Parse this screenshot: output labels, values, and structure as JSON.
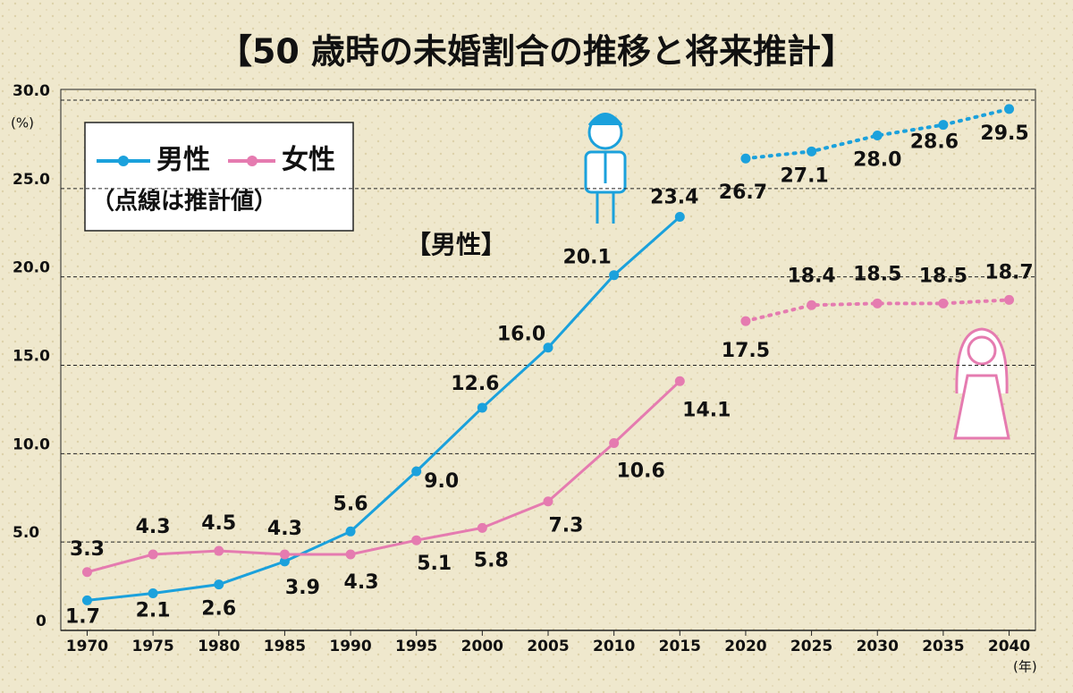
{
  "chart_data": {
    "type": "line",
    "title": "【50 歳時の未婚割合の推移と将来推計】",
    "y_unit": "(%)",
    "x_unit": "(年)",
    "legend_note": "（点線は推計値）",
    "annotation": "【男性】",
    "x": [
      1970,
      1975,
      1980,
      1985,
      1990,
      1995,
      2000,
      2005,
      2010,
      2015,
      2020,
      2025,
      2030,
      2035,
      2040
    ],
    "xlim": [
      1968,
      2042
    ],
    "ylim": [
      0,
      30
    ],
    "yticks": [
      0,
      {
        "value": 5,
        "label": "5.0"
      },
      {
        "value": 10,
        "label": "10.0"
      },
      {
        "value": 15,
        "label": "15.0"
      },
      {
        "value": 20,
        "label": "20.0"
      },
      {
        "value": 25,
        "label": "25.0"
      },
      {
        "value": 30,
        "label": "30.0"
      }
    ],
    "grid": true,
    "series": [
      {
        "name": "男性",
        "color": "#1ba1dc",
        "values": [
          1.7,
          2.1,
          2.6,
          3.9,
          5.6,
          9.0,
          12.6,
          16.0,
          20.1,
          23.4,
          null,
          null,
          null,
          null,
          null
        ],
        "value_labels": [
          "1.7",
          "2.1",
          "2.6",
          "3.9",
          "5.6",
          "9.0",
          "12.6",
          "16.0",
          "20.1",
          "23.4",
          null,
          null,
          null,
          null,
          null
        ],
        "projected_values": [
          null,
          null,
          null,
          null,
          null,
          null,
          null,
          null,
          null,
          null,
          26.7,
          27.1,
          28.0,
          28.6,
          29.5
        ],
        "projected_value_labels": [
          null,
          null,
          null,
          null,
          null,
          null,
          null,
          null,
          null,
          null,
          "26.7",
          "27.1",
          "28.0",
          "28.6",
          "29.5"
        ]
      },
      {
        "name": "女性",
        "color": "#e57bb0",
        "values": [
          3.3,
          4.3,
          4.5,
          4.3,
          4.3,
          5.1,
          5.8,
          7.3,
          10.6,
          14.1,
          null,
          null,
          null,
          null,
          null
        ],
        "value_labels": [
          "3.3",
          "4.3",
          "4.5",
          "4.3",
          "4.3",
          "5.1",
          "5.8",
          "7.3",
          "10.6",
          "14.1",
          null,
          null,
          null,
          null,
          null
        ],
        "projected_values": [
          null,
          null,
          null,
          null,
          null,
          null,
          null,
          null,
          null,
          null,
          17.5,
          18.4,
          18.5,
          18.5,
          18.7
        ],
        "projected_value_labels": [
          null,
          null,
          null,
          null,
          null,
          null,
          null,
          null,
          null,
          null,
          "17.5",
          "18.4",
          "18.5",
          "18.5",
          "18.7"
        ]
      }
    ]
  }
}
